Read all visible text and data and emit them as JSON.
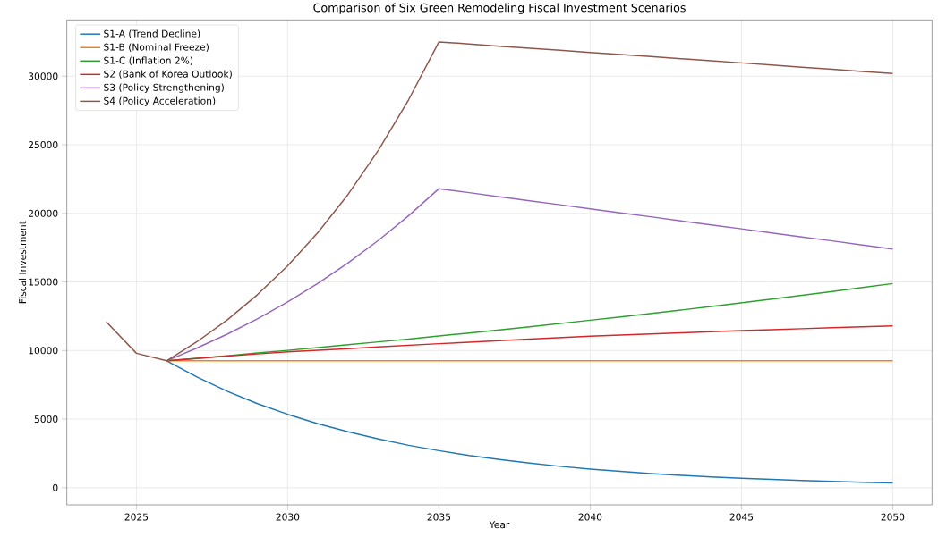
{
  "chart_data": {
    "type": "line",
    "title": "Comparison of Six Green Remodeling Fiscal Investment Scenarios",
    "xlabel": "Year",
    "ylabel": "Fiscal Investment",
    "x": [
      2024,
      2025,
      2026,
      2027,
      2028,
      2029,
      2030,
      2031,
      2032,
      2033,
      2034,
      2035,
      2036,
      2037,
      2038,
      2039,
      2040,
      2041,
      2042,
      2043,
      2044,
      2045,
      2046,
      2047,
      2048,
      2049,
      2050
    ],
    "series": [
      {
        "name": "S1-A (Trend Decline)",
        "color": "#1f77b4",
        "values": [
          null,
          null,
          9250,
          8070,
          7030,
          6130,
          5350,
          4660,
          4070,
          3550,
          3090,
          2700,
          2350,
          2050,
          1790,
          1560,
          1360,
          1190,
          1030,
          900,
          790,
          690,
          600,
          520,
          460,
          400,
          350
        ]
      },
      {
        "name": "S1-B (Nominal Freeze)",
        "color": "#ff7f0e",
        "values": [
          null,
          null,
          9250,
          9250,
          9250,
          9250,
          9250,
          9250,
          9250,
          9250,
          9250,
          9250,
          9250,
          9250,
          9250,
          9250,
          9250,
          9250,
          9250,
          9250,
          9250,
          9250,
          9250,
          9250,
          9250,
          9250,
          9250
        ]
      },
      {
        "name": "S1-C (Inflation 2%)",
        "color": "#2ca02c",
        "values": [
          null,
          null,
          9250,
          9440,
          9620,
          9820,
          10010,
          10210,
          10420,
          10630,
          10840,
          11060,
          11280,
          11500,
          11730,
          11970,
          12210,
          12450,
          12700,
          12950,
          13210,
          13480,
          13750,
          14020,
          14300,
          14590,
          14880
        ]
      },
      {
        "name": "S2 (Bank of Korea Outlook)",
        "color": "#d62728",
        "values": [
          null,
          null,
          9250,
          9420,
          9590,
          9750,
          9900,
          10020,
          10140,
          10260,
          10380,
          10500,
          10610,
          10720,
          10830,
          10940,
          11050,
          11130,
          11210,
          11290,
          11370,
          11450,
          11520,
          11590,
          11660,
          11730,
          11800
        ]
      },
      {
        "name": "S3 (Policy Strengthening)",
        "color": "#9467bd",
        "values": [
          null,
          null,
          9250,
          10180,
          11190,
          12310,
          13540,
          14900,
          16390,
          18030,
          19830,
          21800,
          21510,
          21210,
          20920,
          20630,
          20330,
          20040,
          19750,
          19450,
          19160,
          18870,
          18570,
          18280,
          17990,
          17690,
          17400
        ]
      },
      {
        "name": "S4 (Policy Acceleration)",
        "color": "#8c564b",
        "values": [
          12100,
          9800,
          9250,
          10640,
          12230,
          14070,
          16180,
          18600,
          21390,
          24600,
          28290,
          32500,
          32350,
          32190,
          32040,
          31890,
          31730,
          31580,
          31430,
          31270,
          31120,
          30970,
          30810,
          30660,
          30510,
          30350,
          30200
        ]
      }
    ],
    "xlim": [
      2022.7,
      2051.3
    ],
    "ylim": [
      -1250,
      34100
    ],
    "xticks": [
      2025,
      2030,
      2035,
      2040,
      2045,
      2050
    ],
    "yticks": [
      0,
      5000,
      10000,
      15000,
      20000,
      25000,
      30000
    ],
    "grid": true,
    "legend": "top left",
    "marker": "none",
    "line_style": "solid"
  }
}
